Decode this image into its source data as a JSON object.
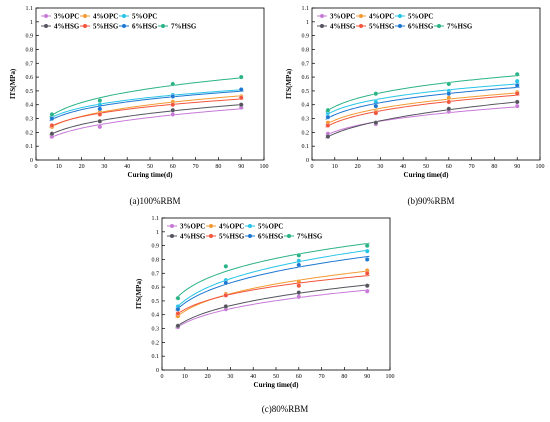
{
  "chart_data": [
    {
      "type": "scatter",
      "caption": "(a)100%RBM",
      "xlabel": "Curing time(d)",
      "ylabel": "ITS(MPa)",
      "xlim": [
        0,
        100
      ],
      "ylim": [
        0,
        1.1
      ],
      "xticks": [
        0,
        10,
        20,
        30,
        40,
        50,
        60,
        70,
        80,
        90,
        100
      ],
      "yticks": [
        0,
        0.1,
        0.2,
        0.3,
        0.4,
        0.5,
        0.6,
        0.7,
        0.8,
        0.9,
        1.0,
        1.1
      ],
      "legend_placement": "top-left",
      "grid": false,
      "x": [
        7,
        28,
        60,
        90
      ],
      "series": [
        {
          "name": "3%OPC",
          "color": "#c879d8",
          "values": [
            0.17,
            0.24,
            0.33,
            0.38
          ]
        },
        {
          "name": "4%OPC",
          "color": "#f39a33",
          "values": [
            0.24,
            0.35,
            0.42,
            0.46
          ]
        },
        {
          "name": "5%OPC",
          "color": "#27c4e8",
          "values": [
            0.31,
            0.4,
            0.47,
            0.51
          ]
        },
        {
          "name": "4%HSG",
          "color": "#55555f",
          "values": [
            0.19,
            0.28,
            0.36,
            0.4
          ]
        },
        {
          "name": "5%HSG",
          "color": "#f2553d",
          "values": [
            0.25,
            0.33,
            0.4,
            0.45
          ]
        },
        {
          "name": "6%HSG",
          "color": "#1e78d2",
          "values": [
            0.3,
            0.37,
            0.46,
            0.51
          ]
        },
        {
          "name": "7%HSG",
          "color": "#2bb388",
          "values": [
            0.33,
            0.43,
            0.55,
            0.6
          ]
        }
      ]
    },
    {
      "type": "scatter",
      "caption": "(b)90%RBM",
      "xlabel": "Curing time(d)",
      "ylabel": "ITS(MPa)",
      "xlim": [
        0,
        100
      ],
      "ylim": [
        0,
        1.1
      ],
      "xticks": [
        0,
        10,
        20,
        30,
        40,
        50,
        60,
        70,
        80,
        90,
        100
      ],
      "yticks": [
        0,
        0.1,
        0.2,
        0.3,
        0.4,
        0.5,
        0.6,
        0.7,
        0.8,
        0.9,
        1.0,
        1.1
      ],
      "legend_placement": "top-left",
      "grid": false,
      "x": [
        7,
        28,
        60,
        90
      ],
      "series": [
        {
          "name": "3%OPC",
          "color": "#c879d8",
          "values": [
            0.19,
            0.26,
            0.35,
            0.39
          ]
        },
        {
          "name": "4%OPC",
          "color": "#f39a33",
          "values": [
            0.27,
            0.35,
            0.45,
            0.49
          ]
        },
        {
          "name": "5%OPC",
          "color": "#27c4e8",
          "values": [
            0.34,
            0.42,
            0.5,
            0.57
          ]
        },
        {
          "name": "4%HSG",
          "color": "#55555f",
          "values": [
            0.17,
            0.27,
            0.37,
            0.42
          ]
        },
        {
          "name": "5%HSG",
          "color": "#f2553d",
          "values": [
            0.25,
            0.34,
            0.42,
            0.48
          ]
        },
        {
          "name": "6%HSG",
          "color": "#1e78d2",
          "values": [
            0.31,
            0.39,
            0.48,
            0.54
          ]
        },
        {
          "name": "7%HSG",
          "color": "#2bb388",
          "values": [
            0.36,
            0.48,
            0.55,
            0.62
          ]
        }
      ]
    },
    {
      "type": "scatter",
      "caption": "(c)80%RBM",
      "xlabel": "Curing time(d)",
      "ylabel": "ITS(MPa)",
      "xlim": [
        0,
        100
      ],
      "ylim": [
        0,
        1.1
      ],
      "xticks": [
        0,
        10,
        20,
        30,
        40,
        50,
        60,
        70,
        80,
        90,
        100
      ],
      "yticks": [
        0,
        0.1,
        0.2,
        0.3,
        0.4,
        0.5,
        0.6,
        0.7,
        0.8,
        0.9,
        1.0,
        1.1
      ],
      "legend_placement": "top-left",
      "grid": false,
      "x": [
        7,
        28,
        60,
        90
      ],
      "series": [
        {
          "name": "3%OPC",
          "color": "#c879d8",
          "values": [
            0.31,
            0.44,
            0.53,
            0.57
          ]
        },
        {
          "name": "4%OPC",
          "color": "#f39a33",
          "values": [
            0.39,
            0.55,
            0.64,
            0.72
          ]
        },
        {
          "name": "5%OPC",
          "color": "#27c4e8",
          "values": [
            0.46,
            0.65,
            0.79,
            0.86
          ]
        },
        {
          "name": "4%HSG",
          "color": "#55555f",
          "values": [
            0.32,
            0.46,
            0.56,
            0.61
          ]
        },
        {
          "name": "5%HSG",
          "color": "#f2553d",
          "values": [
            0.41,
            0.54,
            0.61,
            0.7
          ]
        },
        {
          "name": "6%HSG",
          "color": "#1e78d2",
          "values": [
            0.44,
            0.63,
            0.76,
            0.8
          ]
        },
        {
          "name": "7%HSG",
          "color": "#2bb388",
          "values": [
            0.52,
            0.75,
            0.83,
            0.9
          ]
        }
      ]
    }
  ]
}
